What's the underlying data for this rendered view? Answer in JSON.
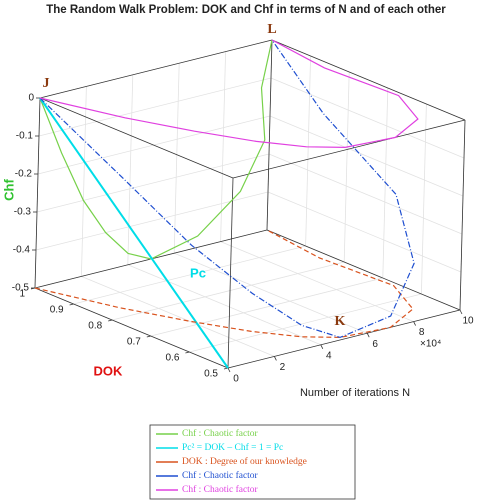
{
  "chart_data": {
    "type": "line3d",
    "title": "The Random Walk Problem: DOK and Chf in terms of N and of each other",
    "xlabel": "Number of iterations N",
    "ylabel": "DOK",
    "zlabel": "Chf",
    "x_multiplier": "×10⁴",
    "xlim": [
      0,
      10
    ],
    "xticks": [
      0,
      2,
      4,
      6,
      8,
      10
    ],
    "ylim": [
      0.5,
      1
    ],
    "yticks": [
      0.5,
      0.6,
      0.7,
      0.8,
      0.9,
      1
    ],
    "zlim": [
      -0.5,
      0
    ],
    "zticks": [
      -0.5,
      -0.4,
      -0.3,
      -0.2,
      -0.1,
      0
    ],
    "grid": true,
    "legend": "bottom",
    "annotations": [
      "J",
      "L",
      "K",
      "Pc"
    ],
    "series": [
      {
        "name": "Chf : Chaotic factor",
        "color": "#77d14a",
        "x": [
          0,
          1,
          2,
          3,
          4,
          5,
          7,
          8.8,
          9.8,
          9.6,
          10
        ],
        "y": [
          1,
          1,
          1,
          1,
          1,
          1,
          1,
          1,
          1,
          1,
          1
        ],
        "z": [
          0,
          -0.16,
          -0.3,
          -0.4,
          -0.47,
          -0.5,
          -0.47,
          -0.38,
          -0.26,
          -0.12,
          0
        ]
      },
      {
        "name": "Pc² = DOK – Chf = 1 = Pc",
        "color": "#00dde8",
        "x": [
          0,
          0
        ],
        "y": [
          1,
          0.5
        ],
        "z": [
          0,
          -0.5
        ]
      },
      {
        "name": "DOK : Degree of our knowledge",
        "color": "#d9531e",
        "x": [
          0,
          1,
          2,
          3,
          4,
          5,
          7,
          8.8,
          9.8,
          9.6,
          10
        ],
        "y": [
          1,
          0.84,
          0.72,
          0.62,
          0.55,
          0.51,
          0.5,
          0.55,
          0.66,
          0.84,
          1
        ],
        "z": [
          -0.5,
          -0.5,
          -0.5,
          -0.5,
          -0.5,
          -0.5,
          -0.5,
          -0.5,
          -0.5,
          -0.5,
          -0.5
        ]
      },
      {
        "name": "Chf : Chaotic factor",
        "color": "#1f4fd0",
        "x": [
          0,
          1,
          2,
          3,
          4,
          5,
          7,
          8.8,
          9.8,
          9.6,
          10
        ],
        "y": [
          1,
          0.84,
          0.72,
          0.62,
          0.55,
          0.51,
          0.5,
          0.55,
          0.66,
          0.84,
          1
        ],
        "z": [
          0,
          -0.16,
          -0.3,
          -0.4,
          -0.47,
          -0.5,
          -0.47,
          -0.38,
          -0.26,
          -0.12,
          0
        ]
      },
      {
        "name": "Chf : Chaotic factor",
        "color": "#e040e0",
        "x": [
          0,
          1,
          2,
          3,
          4,
          5,
          7,
          8.8,
          9.8,
          9.6,
          10
        ],
        "y": [
          1,
          0.84,
          0.72,
          0.62,
          0.55,
          0.51,
          0.5,
          0.55,
          0.66,
          0.84,
          1
        ],
        "z": [
          0,
          0,
          0,
          0,
          0,
          0,
          0,
          0,
          0,
          0,
          0
        ]
      }
    ]
  }
}
